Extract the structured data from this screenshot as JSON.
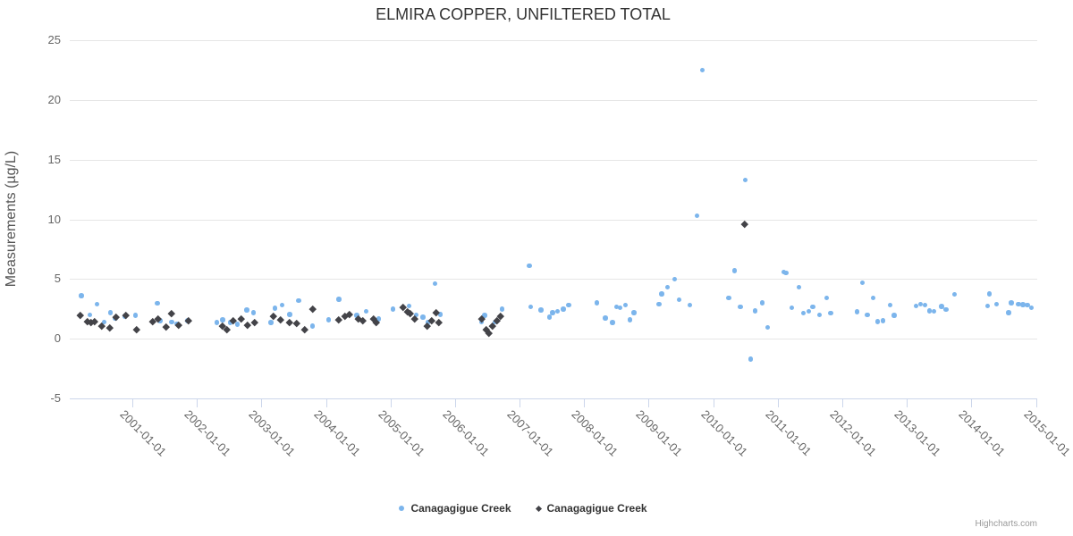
{
  "chart_data": {
    "type": "scatter",
    "title": "ELMIRA COPPER, UNFILTERED TOTAL",
    "xlabel": "",
    "ylabel": "Measurements (µg/L)",
    "grid": "horizontal-only",
    "legend_position": "bottom-center",
    "credits": "Highcharts.com",
    "y_range": [
      -5,
      25
    ],
    "y_ticks": [
      25,
      20,
      15,
      10,
      5,
      0,
      -5
    ],
    "x_range_decimal_years": [
      2000.03,
      2015.02
    ],
    "x_tick_years": [
      2001,
      2002,
      2003,
      2004,
      2005,
      2006,
      2007,
      2008,
      2009,
      2010,
      2011,
      2012,
      2013,
      2014,
      2015
    ],
    "x_tick_labels": [
      "2001-01-01",
      "2002-01-01",
      "2003-01-01",
      "2004-01-01",
      "2005-01-01",
      "2006-01-01",
      "2007-01-01",
      "2008-01-01",
      "2009-01-01",
      "2010-01-01",
      "2011-01-01",
      "2012-01-01",
      "2013-01-01",
      "2014-01-01",
      "2015-01-01"
    ],
    "colors": {
      "series_blue": "#7cb5ec",
      "series_dark": "#434348",
      "grid": "#e6e6e6",
      "axis": "#ccd6eb",
      "title": "#333333",
      "labels": "#666666"
    },
    "series": [
      {
        "name": "Canagagigue Creek",
        "marker": "circle",
        "color": "#7cb5ec",
        "points": [
          [
            2000.21,
            3.6
          ],
          [
            2000.34,
            2.0
          ],
          [
            2000.45,
            2.9
          ],
          [
            2000.56,
            1.4
          ],
          [
            2000.66,
            2.2
          ],
          [
            2000.74,
            1.7
          ],
          [
            2000.88,
            1.9
          ],
          [
            2001.05,
            1.95
          ],
          [
            2001.39,
            2.95
          ],
          [
            2001.43,
            1.5
          ],
          [
            2001.61,
            1.4
          ],
          [
            2001.69,
            1.25
          ],
          [
            2001.86,
            1.5
          ],
          [
            2002.31,
            1.35
          ],
          [
            2002.4,
            1.6
          ],
          [
            2002.52,
            1.35
          ],
          [
            2002.63,
            1.2
          ],
          [
            2002.77,
            2.4
          ],
          [
            2002.88,
            2.2
          ],
          [
            2003.15,
            1.35
          ],
          [
            2003.21,
            2.55
          ],
          [
            2003.32,
            2.8
          ],
          [
            2003.44,
            2.05
          ],
          [
            2003.58,
            3.2
          ],
          [
            2003.79,
            1.05
          ],
          [
            2004.04,
            1.6
          ],
          [
            2004.2,
            3.3
          ],
          [
            2004.48,
            1.95
          ],
          [
            2004.62,
            2.3
          ],
          [
            2004.82,
            1.65
          ],
          [
            2005.04,
            2.5
          ],
          [
            2005.29,
            2.75
          ],
          [
            2005.4,
            2.0
          ],
          [
            2005.5,
            1.8
          ],
          [
            2005.58,
            1.35
          ],
          [
            2005.69,
            4.6
          ],
          [
            2005.77,
            2.05
          ],
          [
            2006.41,
            1.4
          ],
          [
            2006.46,
            1.95
          ],
          [
            2006.62,
            1.4
          ],
          [
            2006.73,
            2.5
          ],
          [
            2007.15,
            6.1
          ],
          [
            2007.17,
            2.65
          ],
          [
            2007.33,
            2.4
          ],
          [
            2007.46,
            1.8
          ],
          [
            2007.51,
            2.2
          ],
          [
            2007.59,
            2.3
          ],
          [
            2007.68,
            2.5
          ],
          [
            2007.76,
            2.8
          ],
          [
            2008.2,
            3.0
          ],
          [
            2008.33,
            1.75
          ],
          [
            2008.44,
            1.35
          ],
          [
            2008.5,
            2.65
          ],
          [
            2008.56,
            2.6
          ],
          [
            2008.64,
            2.8
          ],
          [
            2008.71,
            1.6
          ],
          [
            2008.77,
            2.2
          ],
          [
            2009.16,
            2.9
          ],
          [
            2009.2,
            3.75
          ],
          [
            2009.29,
            4.3
          ],
          [
            2009.4,
            5.0
          ],
          [
            2009.47,
            3.25
          ],
          [
            2009.64,
            2.8
          ],
          [
            2009.75,
            10.3
          ],
          [
            2009.83,
            22.5
          ],
          [
            2010.24,
            3.4
          ],
          [
            2010.33,
            5.7
          ],
          [
            2010.42,
            2.65
          ],
          [
            2010.5,
            13.3
          ],
          [
            2010.58,
            -1.7
          ],
          [
            2010.65,
            2.35
          ],
          [
            2010.76,
            3.0
          ],
          [
            2010.84,
            0.95
          ],
          [
            2011.09,
            5.6
          ],
          [
            2011.13,
            5.5
          ],
          [
            2011.22,
            2.6
          ],
          [
            2011.33,
            4.3
          ],
          [
            2011.4,
            2.15
          ],
          [
            2011.48,
            2.3
          ],
          [
            2011.54,
            2.65
          ],
          [
            2011.65,
            2.0
          ],
          [
            2011.76,
            3.4
          ],
          [
            2011.82,
            2.15
          ],
          [
            2012.23,
            2.25
          ],
          [
            2012.31,
            4.7
          ],
          [
            2012.39,
            2.0
          ],
          [
            2012.48,
            3.4
          ],
          [
            2012.55,
            1.45
          ],
          [
            2012.63,
            1.5
          ],
          [
            2012.74,
            2.8
          ],
          [
            2012.8,
            1.95
          ],
          [
            2013.14,
            2.75
          ],
          [
            2013.21,
            2.9
          ],
          [
            2013.28,
            2.8
          ],
          [
            2013.35,
            2.35
          ],
          [
            2013.42,
            2.3
          ],
          [
            2013.54,
            2.7
          ],
          [
            2013.61,
            2.45
          ],
          [
            2013.74,
            3.7
          ],
          [
            2014.25,
            2.75
          ],
          [
            2014.28,
            3.75
          ],
          [
            2014.39,
            2.9
          ],
          [
            2014.58,
            2.2
          ],
          [
            2014.62,
            3.0
          ],
          [
            2014.73,
            2.9
          ],
          [
            2014.8,
            2.85
          ],
          [
            2014.87,
            2.8
          ],
          [
            2014.93,
            2.6
          ]
        ]
      },
      {
        "name": "Canagagigue Creek",
        "marker": "diamond",
        "color": "#434348",
        "points": [
          [
            2000.19,
            2.0
          ],
          [
            2000.3,
            1.45
          ],
          [
            2000.36,
            1.35
          ],
          [
            2000.42,
            1.45
          ],
          [
            2000.53,
            1.1
          ],
          [
            2000.65,
            0.95
          ],
          [
            2000.75,
            1.85
          ],
          [
            2000.9,
            1.95
          ],
          [
            2001.06,
            0.8
          ],
          [
            2001.31,
            1.45
          ],
          [
            2001.4,
            1.7
          ],
          [
            2001.52,
            1.0
          ],
          [
            2001.61,
            2.1
          ],
          [
            2001.71,
            1.15
          ],
          [
            2001.87,
            1.55
          ],
          [
            2002.39,
            1.1
          ],
          [
            2002.46,
            0.8
          ],
          [
            2002.56,
            1.55
          ],
          [
            2002.69,
            1.7
          ],
          [
            2002.78,
            1.15
          ],
          [
            2002.89,
            1.4
          ],
          [
            2003.19,
            1.9
          ],
          [
            2003.3,
            1.6
          ],
          [
            2003.44,
            1.4
          ],
          [
            2003.55,
            1.3
          ],
          [
            2003.67,
            0.75
          ],
          [
            2003.79,
            2.5
          ],
          [
            2004.19,
            1.6
          ],
          [
            2004.29,
            1.9
          ],
          [
            2004.36,
            2.05
          ],
          [
            2004.5,
            1.7
          ],
          [
            2004.57,
            1.55
          ],
          [
            2004.74,
            1.7
          ],
          [
            2004.78,
            1.35
          ],
          [
            2005.2,
            2.65
          ],
          [
            2005.26,
            2.3
          ],
          [
            2005.31,
            2.1
          ],
          [
            2005.38,
            1.65
          ],
          [
            2005.57,
            1.05
          ],
          [
            2005.64,
            1.5
          ],
          [
            2005.7,
            2.2
          ],
          [
            2005.75,
            1.35
          ],
          [
            2006.42,
            1.65
          ],
          [
            2006.48,
            0.75
          ],
          [
            2006.52,
            0.45
          ],
          [
            2006.58,
            1.1
          ],
          [
            2006.65,
            1.5
          ],
          [
            2006.7,
            1.9
          ],
          [
            2010.48,
            9.6
          ]
        ]
      }
    ]
  }
}
